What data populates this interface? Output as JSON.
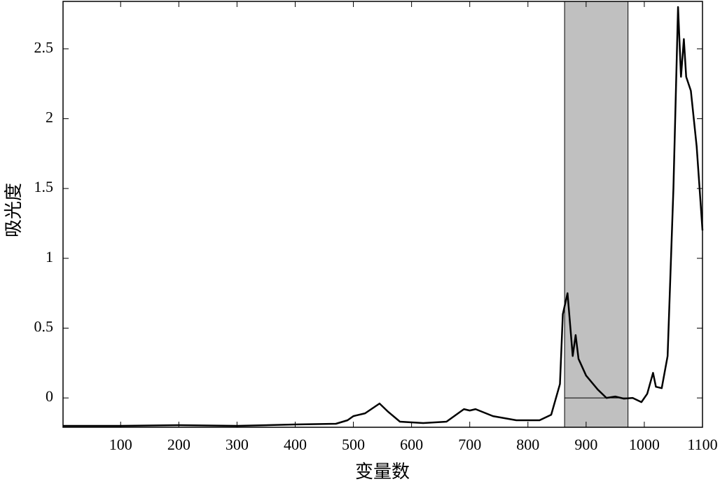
{
  "chart_data": {
    "type": "line",
    "xlabel": "变量数",
    "ylabel": "吸光度",
    "x": [
      1,
      100,
      200,
      300,
      400,
      470,
      490,
      500,
      520,
      545,
      560,
      580,
      620,
      660,
      690,
      700,
      710,
      740,
      780,
      820,
      840,
      855,
      860,
      868,
      872,
      877,
      882,
      887,
      900,
      920,
      935,
      950,
      965,
      980,
      995,
      1005,
      1015,
      1020,
      1030,
      1040,
      1050,
      1058,
      1063,
      1068,
      1072,
      1080,
      1090,
      1100
    ],
    "series": [
      {
        "color": "#000000",
        "values": [
          -0.2,
          -0.2,
          -0.195,
          -0.2,
          -0.19,
          -0.185,
          -0.16,
          -0.13,
          -0.11,
          -0.04,
          -0.1,
          -0.17,
          -0.18,
          -0.17,
          -0.08,
          -0.09,
          -0.08,
          -0.13,
          -0.16,
          -0.16,
          -0.12,
          0.1,
          0.6,
          0.75,
          0.55,
          0.3,
          0.45,
          0.28,
          0.16,
          0.06,
          0.0,
          0.01,
          -0.005,
          0.0,
          -0.03,
          0.03,
          0.18,
          0.08,
          0.07,
          0.3,
          1.5,
          2.8,
          2.3,
          2.57,
          2.3,
          2.2,
          1.8,
          1.2
        ]
      }
    ],
    "shaded_region": {
      "x": [
        863,
        972
      ],
      "color": "#c0c0c0"
    },
    "xlim": [
      1,
      1100
    ],
    "ylim": [
      -0.21,
      2.84
    ],
    "xticks": [
      100,
      200,
      300,
      400,
      500,
      600,
      700,
      800,
      900,
      1000,
      1100
    ],
    "yticks": [
      0,
      0.5,
      1,
      1.5,
      2,
      2.5
    ]
  }
}
